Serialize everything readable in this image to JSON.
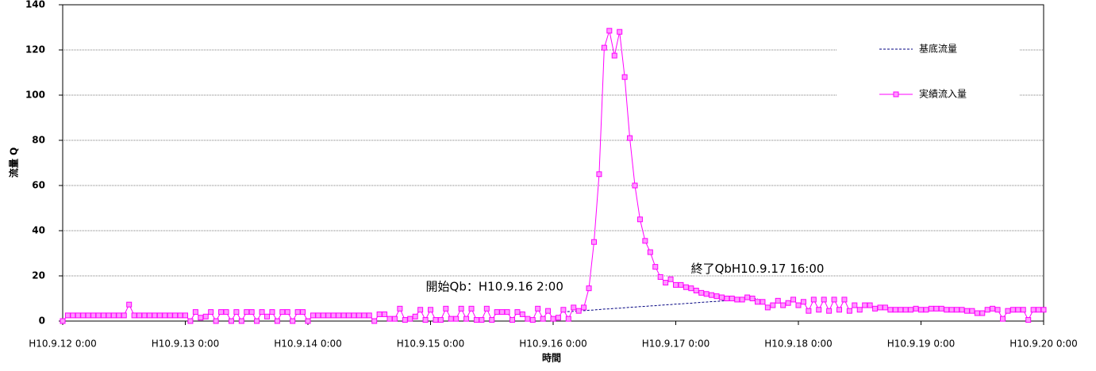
{
  "chart_data": {
    "type": "line",
    "y_label": "流量 Q",
    "x_label": "時間",
    "categories": [
      "H10.9.12 0:00",
      null,
      null,
      null,
      null,
      null,
      null,
      null,
      null,
      null,
      null,
      null,
      null,
      null,
      null,
      null,
      null,
      null,
      null,
      null,
      null,
      null,
      null,
      null,
      "H10.9.13 0:00",
      null,
      null,
      null,
      null,
      null,
      null,
      null,
      null,
      null,
      null,
      null,
      null,
      null,
      null,
      null,
      null,
      null,
      null,
      null,
      null,
      null,
      null,
      null,
      "H10.9.14 0:00",
      null,
      null,
      null,
      null,
      null,
      null,
      null,
      null,
      null,
      null,
      null,
      null,
      null,
      null,
      null,
      null,
      null,
      null,
      null,
      null,
      null,
      null,
      null,
      "H10.9.15 0:00",
      null,
      null,
      null,
      null,
      null,
      null,
      null,
      null,
      null,
      null,
      null,
      null,
      null,
      null,
      null,
      null,
      null,
      null,
      null,
      null,
      null,
      null,
      null,
      "H10.9.16 0:00",
      null,
      null,
      null,
      null,
      null,
      null,
      null,
      null,
      null,
      null,
      null,
      null,
      null,
      null,
      null,
      null,
      null,
      null,
      null,
      null,
      null,
      null,
      null,
      "H10.9.17 0:00",
      null,
      null,
      null,
      null,
      null,
      null,
      null,
      null,
      null,
      null,
      null,
      null,
      null,
      null,
      null,
      null,
      null,
      null,
      null,
      null,
      null,
      null,
      null,
      "H10.9.18 0:00",
      null,
      null,
      null,
      null,
      null,
      null,
      null,
      null,
      null,
      null,
      null,
      null,
      null,
      null,
      null,
      null,
      null,
      null,
      null,
      null,
      null,
      null,
      null,
      "H10.9.19 0:00",
      null,
      null,
      null,
      null,
      null,
      null,
      null,
      null,
      null,
      null,
      null,
      null,
      null,
      null,
      null,
      null,
      null,
      null,
      null,
      null,
      null,
      null,
      null,
      "H10.9.20 0:00"
    ],
    "series": [
      {
        "name": "基底流量",
        "color": "#000080",
        "dashed": true,
        "markers": false,
        "values": [
          null,
          null,
          null,
          null,
          null,
          null,
          null,
          null,
          null,
          null,
          null,
          null,
          null,
          null,
          null,
          null,
          null,
          null,
          null,
          null,
          null,
          null,
          null,
          null,
          null,
          null,
          null,
          null,
          null,
          null,
          null,
          null,
          null,
          null,
          null,
          null,
          null,
          null,
          null,
          null,
          null,
          null,
          null,
          null,
          null,
          null,
          null,
          null,
          null,
          null,
          null,
          null,
          null,
          null,
          null,
          null,
          null,
          null,
          null,
          null,
          null,
          null,
          null,
          null,
          null,
          null,
          null,
          null,
          null,
          null,
          null,
          null,
          null,
          null,
          null,
          null,
          null,
          null,
          null,
          null,
          null,
          null,
          null,
          null,
          null,
          null,
          null,
          null,
          null,
          null,
          null,
          null,
          null,
          null,
          null,
          null,
          null,
          null,
          4.0,
          4.2,
          4.3,
          4.5,
          4.6,
          4.8,
          4.9,
          5.1,
          5.3,
          5.4,
          5.6,
          5.7,
          5.9,
          6.1,
          6.2,
          6.4,
          6.5,
          6.7,
          6.8,
          7.0,
          7.2,
          7.3,
          7.5,
          7.6,
          7.8,
          7.9,
          8.1,
          8.3,
          8.4,
          8.6,
          8.7,
          8.9,
          9.1,
          9.2,
          9.4,
          9.5,
          9.7,
          9.8,
          10.0,
          null,
          null,
          null,
          null,
          null,
          null,
          null,
          null,
          null,
          null,
          null,
          null,
          null,
          null,
          null,
          null,
          null,
          null,
          null,
          null,
          null,
          null,
          null,
          null,
          null,
          null,
          null,
          null,
          null,
          null,
          null,
          null,
          null,
          null,
          null,
          null,
          null,
          null,
          null,
          null,
          null,
          null,
          null,
          null,
          null,
          null,
          null,
          null,
          null,
          null,
          null,
          null,
          null,
          null,
          null,
          null
        ]
      },
      {
        "name": "実績流入量",
        "color": "#ff00ff",
        "marker_fill": "#ff99ff",
        "dashed": false,
        "markers": true,
        "values": [
          0,
          2.5,
          2.5,
          2.5,
          2.5,
          2.5,
          2.5,
          2.5,
          2.5,
          2.5,
          2.5,
          2.5,
          2.5,
          7.3,
          2.5,
          2.5,
          2.5,
          2.5,
          2.5,
          2.5,
          2.5,
          2.5,
          2.5,
          2.5,
          2.5,
          0,
          4,
          1.5,
          2,
          4,
          0,
          4,
          4,
          0,
          4,
          0,
          4,
          4,
          0,
          4,
          2,
          4,
          0,
          4,
          4,
          0,
          4,
          4,
          0,
          2.5,
          2.5,
          2.5,
          2.5,
          2.5,
          2.5,
          2.5,
          2.5,
          2.5,
          2.5,
          2.5,
          2.5,
          0,
          3,
          3,
          1,
          1,
          5.5,
          0.5,
          1,
          2,
          5,
          0.5,
          5,
          0.5,
          0.5,
          5.5,
          1,
          1,
          5.5,
          1,
          5.5,
          0.5,
          0.5,
          5.5,
          0.5,
          4,
          4,
          4,
          0.5,
          4,
          3,
          1,
          0.5,
          5.5,
          1,
          4.5,
          1,
          1.5,
          5,
          1,
          6,
          4.5,
          6,
          14.5,
          35,
          65,
          121,
          128.5,
          117.5,
          128,
          108,
          81,
          60,
          45,
          35.5,
          30.5,
          24,
          19.5,
          17,
          18.5,
          16,
          16,
          15,
          14.5,
          13.5,
          12.5,
          12,
          11.5,
          11,
          10.5,
          10,
          10,
          9.5,
          9.5,
          10.5,
          10,
          8.5,
          8.5,
          6,
          7,
          9,
          7,
          8,
          9.5,
          7,
          8.5,
          4.5,
          9.5,
          5,
          9.5,
          4.5,
          9.5,
          5,
          9.5,
          4.5,
          7,
          5,
          7,
          7,
          5.5,
          6,
          6,
          5,
          5,
          5,
          5,
          5,
          5.5,
          5,
          5,
          5.5,
          5.5,
          5.5,
          5,
          5,
          5,
          5,
          4.5,
          4.5,
          3.5,
          3.5,
          5,
          5.5,
          5,
          1,
          4.5,
          5,
          5,
          5,
          0.5,
          5,
          5,
          5
        ]
      }
    ],
    "ylim": [
      0,
      140
    ],
    "yticks": [
      0,
      20,
      40,
      60,
      80,
      100,
      120,
      140
    ],
    "grid": true,
    "legend": "upper right",
    "annotations": [
      {
        "text": "開始Qb：H10.9.16 2:00",
        "index": 98,
        "y": 14
      },
      {
        "text": "終了QbH10.9.17 16:00",
        "index": 136,
        "y": 22
      }
    ]
  }
}
